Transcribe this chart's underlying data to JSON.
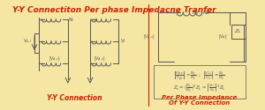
{
  "bg_color": "#f5e6a3",
  "title": "Y-Y Connectiton Per phase Impedacne Tranfer",
  "title_color": "#cc2200",
  "title_fontsize": 6.5,
  "left_label": "Y-Y Connection",
  "left_label_color": "#cc2200",
  "right_label1": "Per Phase Impedance",
  "right_label2": "Of Y-Y Connection",
  "right_label_color": "#cc2200",
  "divider_color": "#cc2200",
  "diagram_color": "#555555",
  "formula_color": "#222222"
}
